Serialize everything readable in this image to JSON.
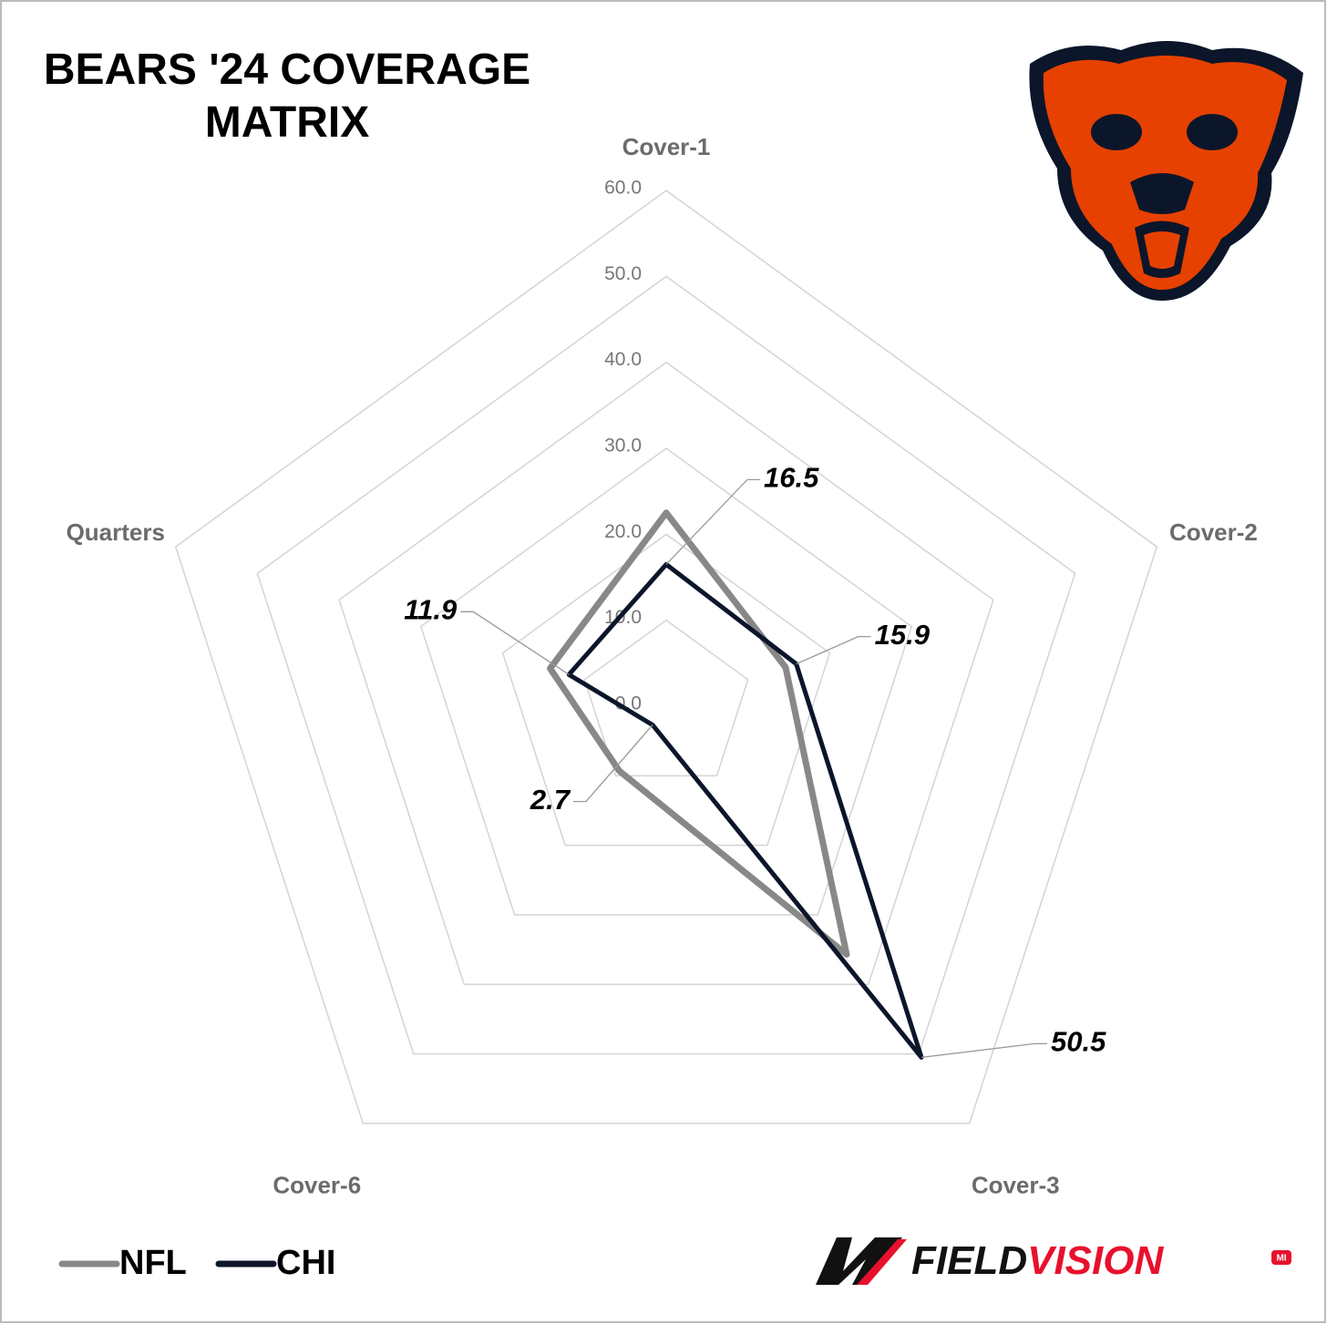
{
  "chart_data": {
    "type": "radar",
    "title": "BEARS '24 COVERAGE MATRIX",
    "categories": [
      "Cover-1",
      "Cover-2",
      "Cover-3",
      "Cover-6",
      "Quarters"
    ],
    "series": [
      {
        "name": "NFL",
        "color": "#888888",
        "values": [
          22.5,
          14.6,
          35.7,
          9.3,
          14.2
        ]
      },
      {
        "name": "CHI",
        "color": "#0b162a",
        "values": [
          16.5,
          15.9,
          50.5,
          2.7,
          11.9
        ],
        "data_labels": true
      }
    ],
    "rlim": [
      0,
      60
    ],
    "rticks": [
      {
        "value": 0,
        "label": "0.0"
      },
      {
        "value": 10,
        "label": "10.0"
      },
      {
        "value": 20,
        "label": "20.0"
      },
      {
        "value": 30,
        "label": "30.0"
      },
      {
        "value": 40,
        "label": "40.0"
      },
      {
        "value": 50,
        "label": "50.0"
      },
      {
        "value": 60,
        "label": "60.0"
      }
    ],
    "grid": true,
    "legend": "bottom-left"
  },
  "brand": {
    "field": "FIELD",
    "vision": "VISION",
    "badge": "MI"
  }
}
